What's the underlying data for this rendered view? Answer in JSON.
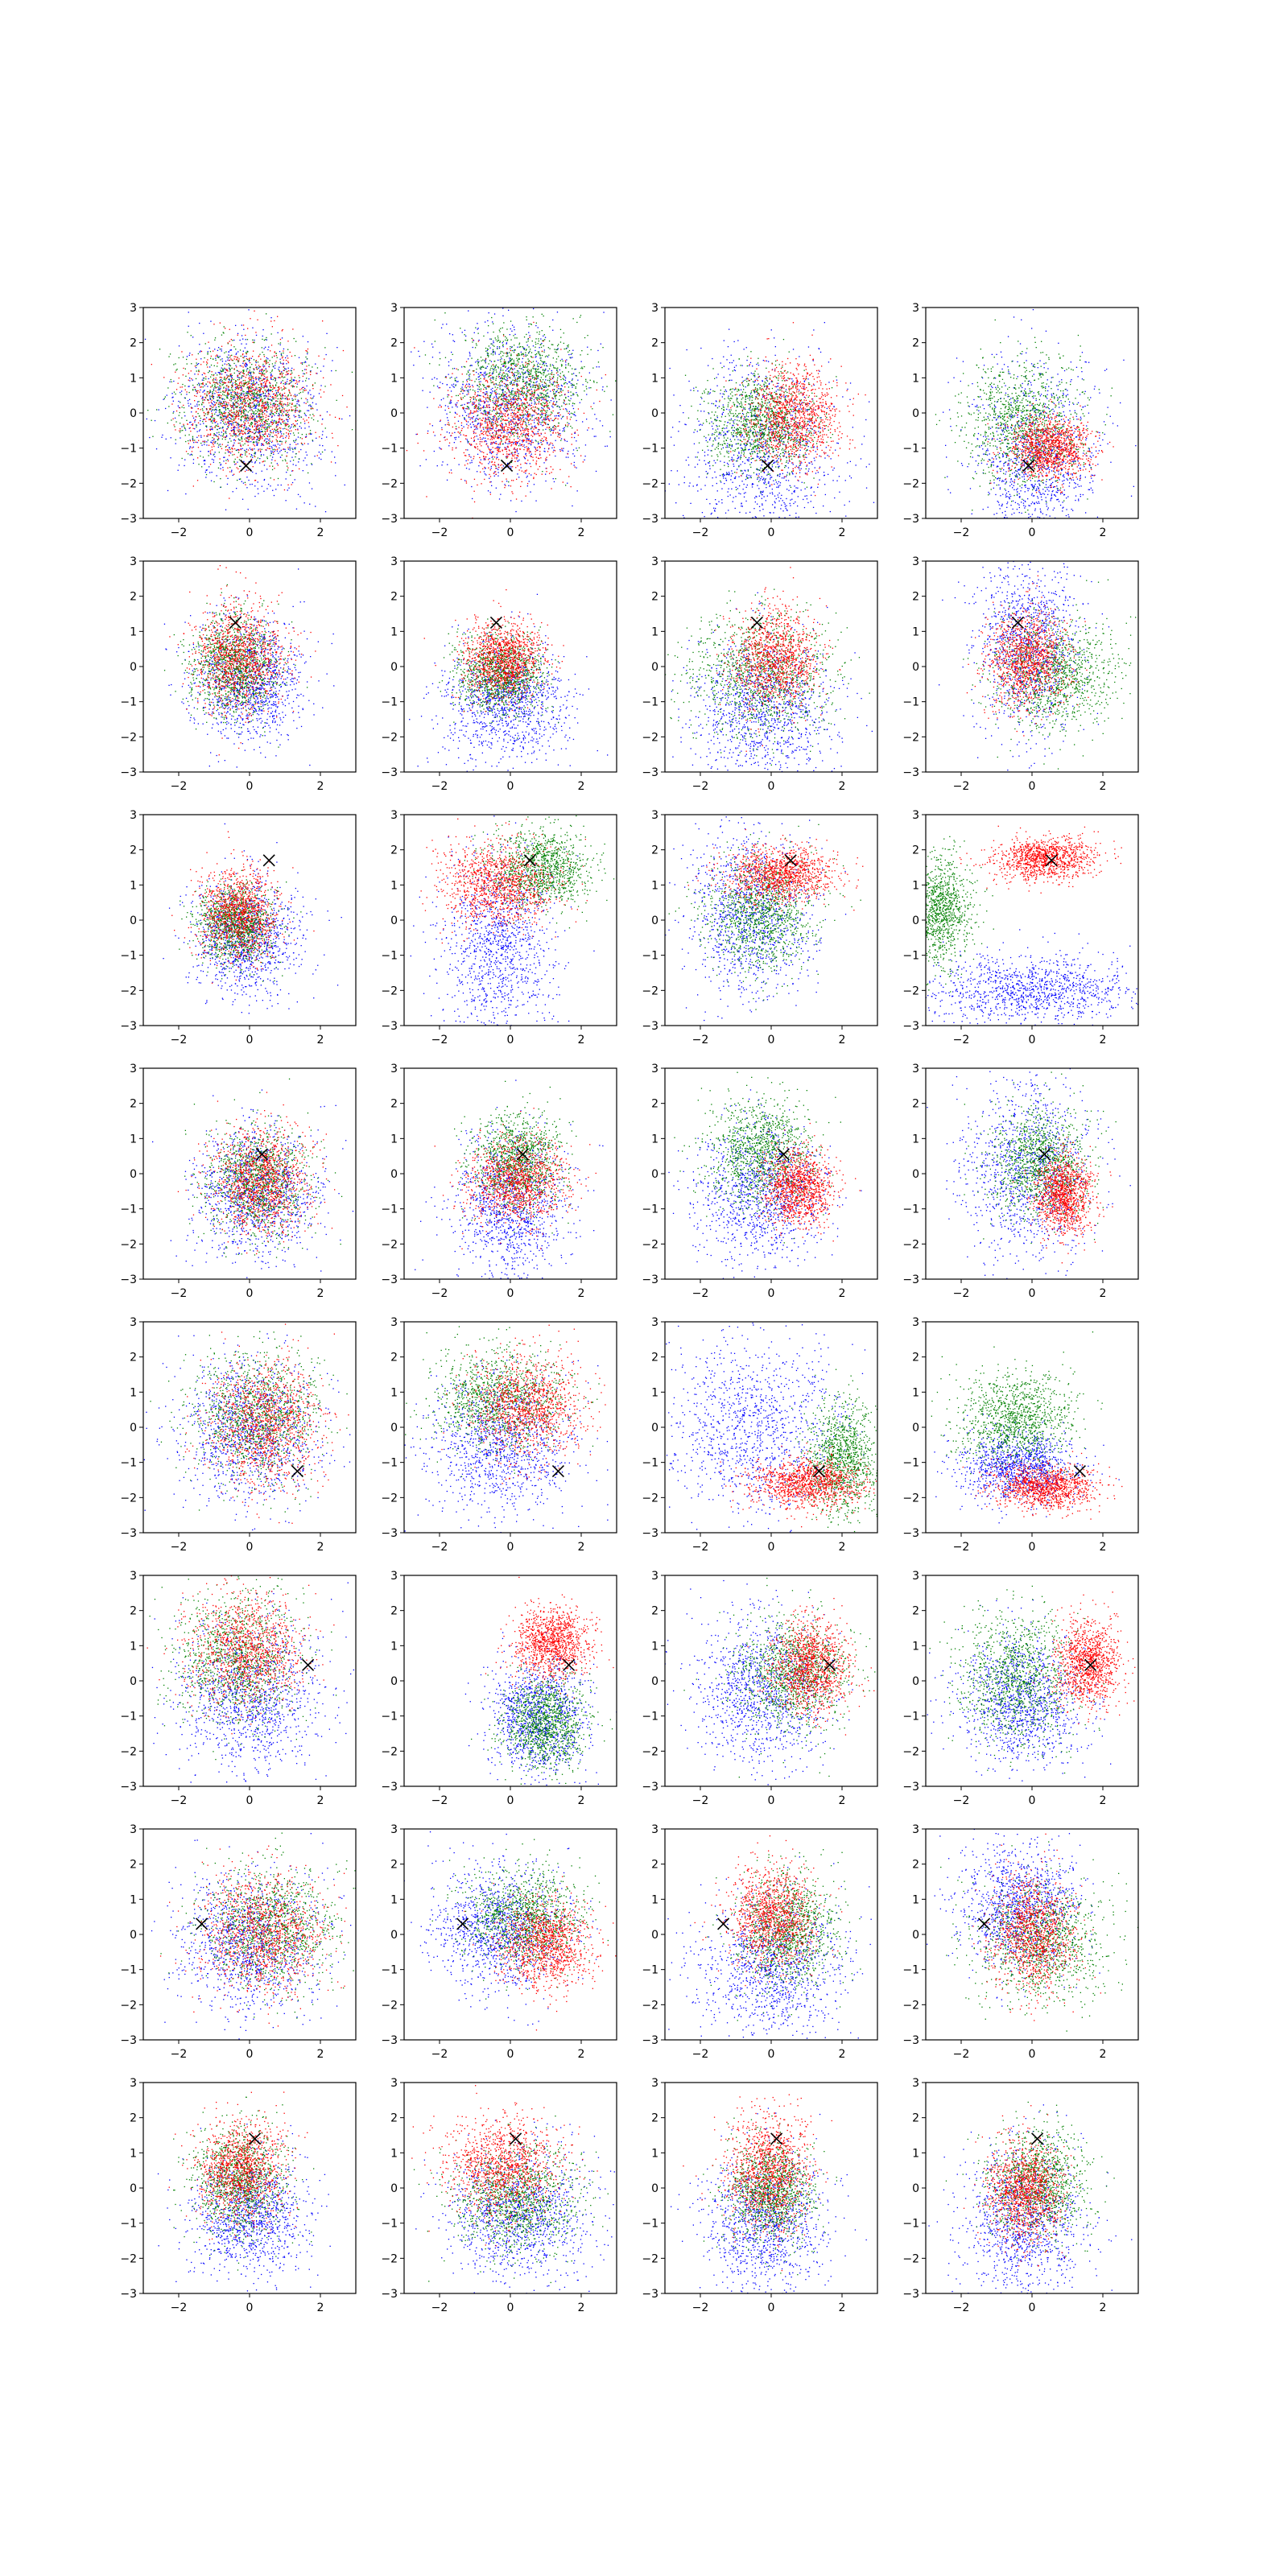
{
  "figure": {
    "rows": 8,
    "cols": 4,
    "colors": {
      "blue": "#0000ff",
      "green": "#008000",
      "red": "#ff0000",
      "marker": "#000000"
    },
    "marker_symbol": "×"
  },
  "chart_data": {
    "type": "scatter",
    "xlim": [
      -3,
      3
    ],
    "ylim": [
      -3,
      3
    ],
    "xticks": [
      -2,
      0,
      2
    ],
    "yticks": [
      -3,
      -2,
      -1,
      0,
      1,
      2,
      3
    ],
    "xtick_labels": [
      "−2",
      "0",
      "2"
    ],
    "ytick_labels": [
      "−3",
      "−2",
      "−1",
      "0",
      "1",
      "2",
      "3"
    ],
    "grid": false,
    "legend": "none",
    "series_colors": [
      "blue",
      "green",
      "red"
    ],
    "points_per_series": 1100,
    "markers_by_row": [
      [
        -0.1,
        -1.5
      ],
      [
        -0.4,
        1.25
      ],
      [
        0.55,
        1.7
      ],
      [
        0.35,
        0.55
      ],
      [
        1.35,
        -1.25
      ],
      [
        1.65,
        0.45
      ],
      [
        -1.35,
        0.3
      ],
      [
        0.15,
        1.4
      ]
    ],
    "panels": [
      {
        "row": 0,
        "col": 0,
        "series": [
          {
            "color": "blue",
            "cx": 0,
            "cy": 0,
            "sx": 1.0,
            "sy": 1.1
          },
          {
            "color": "green",
            "cx": -0.1,
            "cy": 0.3,
            "sx": 0.9,
            "sy": 0.85
          },
          {
            "color": "red",
            "cx": 0,
            "cy": 0.2,
            "sx": 0.9,
            "sy": 0.85
          }
        ]
      },
      {
        "row": 0,
        "col": 1,
        "series": [
          {
            "color": "blue",
            "cx": 0,
            "cy": 0.2,
            "sx": 1.1,
            "sy": 1.1
          },
          {
            "color": "green",
            "cx": 0.3,
            "cy": 0.9,
            "sx": 0.9,
            "sy": 0.8
          },
          {
            "color": "red",
            "cx": -0.1,
            "cy": -0.3,
            "sx": 0.85,
            "sy": 0.8
          }
        ]
      },
      {
        "row": 0,
        "col": 2,
        "series": [
          {
            "color": "blue",
            "cx": -0.3,
            "cy": -1.2,
            "sx": 1.1,
            "sy": 1.4
          },
          {
            "color": "green",
            "cx": -0.3,
            "cy": -0.3,
            "sx": 0.75,
            "sy": 0.7
          },
          {
            "color": "red",
            "cx": 0.6,
            "cy": -0.1,
            "sx": 0.65,
            "sy": 0.7
          }
        ]
      },
      {
        "row": 0,
        "col": 3,
        "series": [
          {
            "color": "blue",
            "cx": 0.1,
            "cy": -1.3,
            "sx": 0.9,
            "sy": 1.4
          },
          {
            "color": "green",
            "cx": -0.2,
            "cy": -0.3,
            "sx": 0.8,
            "sy": 0.9
          },
          {
            "color": "red",
            "cx": 0.5,
            "cy": -1.0,
            "sx": 0.6,
            "sy": 0.45
          }
        ]
      },
      {
        "row": 1,
        "col": 0,
        "series": [
          {
            "color": "blue",
            "cx": 0,
            "cy": -0.4,
            "sx": 0.8,
            "sy": 0.85
          },
          {
            "color": "green",
            "cx": -0.4,
            "cy": 0,
            "sx": 0.6,
            "sy": 0.7
          },
          {
            "color": "red",
            "cx": -0.3,
            "cy": 0.3,
            "sx": 0.65,
            "sy": 0.8
          }
        ]
      },
      {
        "row": 1,
        "col": 1,
        "series": [
          {
            "color": "blue",
            "cx": -0.1,
            "cy": -1.0,
            "sx": 0.9,
            "sy": 0.8
          },
          {
            "color": "green",
            "cx": -0.3,
            "cy": -0.2,
            "sx": 0.6,
            "sy": 0.55
          },
          {
            "color": "red",
            "cx": -0.2,
            "cy": 0.2,
            "sx": 0.55,
            "sy": 0.55
          }
        ]
      },
      {
        "row": 1,
        "col": 2,
        "series": [
          {
            "color": "blue",
            "cx": -0.2,
            "cy": -1.2,
            "sx": 1.0,
            "sy": 1.0
          },
          {
            "color": "green",
            "cx": -0.3,
            "cy": -0.2,
            "sx": 1.0,
            "sy": 0.9
          },
          {
            "color": "red",
            "cx": 0.1,
            "cy": 0.2,
            "sx": 0.6,
            "sy": 0.7
          }
        ]
      },
      {
        "row": 1,
        "col": 3,
        "series": [
          {
            "color": "blue",
            "cx": -0.1,
            "cy": 0.6,
            "sx": 0.7,
            "sy": 1.3
          },
          {
            "color": "green",
            "cx": 0.6,
            "cy": -0.2,
            "sx": 0.9,
            "sy": 0.8
          },
          {
            "color": "red",
            "cx": -0.1,
            "cy": 0.2,
            "sx": 0.55,
            "sy": 0.7
          }
        ]
      },
      {
        "row": 2,
        "col": 0,
        "series": [
          {
            "color": "blue",
            "cx": -0.1,
            "cy": -0.5,
            "sx": 0.75,
            "sy": 0.8
          },
          {
            "color": "green",
            "cx": -0.4,
            "cy": -0.1,
            "sx": 0.55,
            "sy": 0.55
          },
          {
            "color": "red",
            "cx": -0.3,
            "cy": 0.2,
            "sx": 0.55,
            "sy": 0.65
          }
        ]
      },
      {
        "row": 2,
        "col": 1,
        "series": [
          {
            "color": "blue",
            "cx": -0.3,
            "cy": -0.8,
            "sx": 0.75,
            "sy": 1.3
          },
          {
            "color": "green",
            "cx": 0.9,
            "cy": 1.5,
            "sx": 0.7,
            "sy": 0.55
          },
          {
            "color": "red",
            "cx": -0.3,
            "cy": 1.0,
            "sx": 0.8,
            "sy": 0.6
          }
        ]
      },
      {
        "row": 2,
        "col": 2,
        "series": [
          {
            "color": "blue",
            "cx": -0.6,
            "cy": 0.2,
            "sx": 0.9,
            "sy": 1.2
          },
          {
            "color": "green",
            "cx": -0.3,
            "cy": 0.2,
            "sx": 0.8,
            "sy": 0.8
          },
          {
            "color": "red",
            "cx": 0.3,
            "cy": 1.3,
            "sx": 0.75,
            "sy": 0.4
          }
        ]
      },
      {
        "row": 2,
        "col": 3,
        "series": [
          {
            "color": "blue",
            "cx": 0,
            "cy": -2.0,
            "sx": 1.4,
            "sy": 0.5
          },
          {
            "color": "green",
            "cx": -2.6,
            "cy": 0.3,
            "sx": 0.45,
            "sy": 0.8
          },
          {
            "color": "red",
            "cx": 0.4,
            "cy": 1.75,
            "sx": 0.7,
            "sy": 0.3
          }
        ]
      },
      {
        "row": 3,
        "col": 0,
        "series": [
          {
            "color": "blue",
            "cx": 0.2,
            "cy": -0.5,
            "sx": 0.9,
            "sy": 0.9
          },
          {
            "color": "green",
            "cx": 0.2,
            "cy": -0.2,
            "sx": 0.7,
            "sy": 0.75
          },
          {
            "color": "red",
            "cx": 0.3,
            "cy": -0.2,
            "sx": 0.7,
            "sy": 0.75
          }
        ]
      },
      {
        "row": 3,
        "col": 1,
        "series": [
          {
            "color": "blue",
            "cx": 0,
            "cy": -0.9,
            "sx": 0.8,
            "sy": 1.0
          },
          {
            "color": "green",
            "cx": 0.2,
            "cy": 0.4,
            "sx": 0.6,
            "sy": 0.65
          },
          {
            "color": "red",
            "cx": 0.2,
            "cy": -0.2,
            "sx": 0.7,
            "sy": 0.6
          }
        ]
      },
      {
        "row": 3,
        "col": 2,
        "series": [
          {
            "color": "blue",
            "cx": -0.3,
            "cy": -0.6,
            "sx": 0.9,
            "sy": 1.0
          },
          {
            "color": "green",
            "cx": -0.3,
            "cy": 0.6,
            "sx": 0.75,
            "sy": 0.75
          },
          {
            "color": "red",
            "cx": 0.8,
            "cy": -0.4,
            "sx": 0.5,
            "sy": 0.55
          }
        ]
      },
      {
        "row": 3,
        "col": 3,
        "series": [
          {
            "color": "blue",
            "cx": -0.1,
            "cy": 0.1,
            "sx": 0.9,
            "sy": 1.3
          },
          {
            "color": "green",
            "cx": 0.2,
            "cy": 0.3,
            "sx": 0.7,
            "sy": 0.75
          },
          {
            "color": "red",
            "cx": 0.9,
            "cy": -0.6,
            "sx": 0.4,
            "sy": 0.55
          }
        ]
      },
      {
        "row": 4,
        "col": 0,
        "series": [
          {
            "color": "blue",
            "cx": 0,
            "cy": -0.2,
            "sx": 1.0,
            "sy": 1.0
          },
          {
            "color": "green",
            "cx": 0.2,
            "cy": 0.3,
            "sx": 0.9,
            "sy": 0.85
          },
          {
            "color": "red",
            "cx": 0.4,
            "cy": 0.1,
            "sx": 0.8,
            "sy": 0.9
          }
        ]
      },
      {
        "row": 4,
        "col": 1,
        "series": [
          {
            "color": "blue",
            "cx": -0.3,
            "cy": -0.6,
            "sx": 1.0,
            "sy": 1.0
          },
          {
            "color": "green",
            "cx": -0.3,
            "cy": 0.8,
            "sx": 0.9,
            "sy": 0.7
          },
          {
            "color": "red",
            "cx": 0.5,
            "cy": 0.6,
            "sx": 0.8,
            "sy": 0.7
          }
        ]
      },
      {
        "row": 4,
        "col": 2,
        "series": [
          {
            "color": "blue",
            "cx": -0.5,
            "cy": 0,
            "sx": 1.2,
            "sy": 1.3
          },
          {
            "color": "green",
            "cx": 2.0,
            "cy": -0.9,
            "sx": 0.5,
            "sy": 0.8
          },
          {
            "color": "red",
            "cx": 1.0,
            "cy": -1.6,
            "sx": 0.8,
            "sy": 0.35
          }
        ]
      },
      {
        "row": 4,
        "col": 3,
        "series": [
          {
            "color": "blue",
            "cx": -0.4,
            "cy": -1.1,
            "sx": 0.8,
            "sy": 0.5
          },
          {
            "color": "green",
            "cx": -0.4,
            "cy": 0.2,
            "sx": 0.8,
            "sy": 0.65
          },
          {
            "color": "red",
            "cx": 0.4,
            "cy": -1.7,
            "sx": 0.7,
            "sy": 0.3
          }
        ]
      },
      {
        "row": 5,
        "col": 0,
        "series": [
          {
            "color": "blue",
            "cx": 0,
            "cy": -0.5,
            "sx": 1.0,
            "sy": 1.1
          },
          {
            "color": "green",
            "cx": -0.3,
            "cy": 0.6,
            "sx": 0.85,
            "sy": 0.9
          },
          {
            "color": "red",
            "cx": -0.1,
            "cy": 0.9,
            "sx": 0.8,
            "sy": 0.8
          }
        ]
      },
      {
        "row": 5,
        "col": 1,
        "series": [
          {
            "color": "blue",
            "cx": 0.8,
            "cy": -1.0,
            "sx": 0.7,
            "sy": 0.8
          },
          {
            "color": "green",
            "cx": 1.0,
            "cy": -1.2,
            "sx": 0.6,
            "sy": 0.65
          },
          {
            "color": "red",
            "cx": 1.2,
            "cy": 1.1,
            "sx": 0.55,
            "sy": 0.5
          }
        ]
      },
      {
        "row": 5,
        "col": 2,
        "series": [
          {
            "color": "blue",
            "cx": -0.3,
            "cy": -0.3,
            "sx": 1.0,
            "sy": 1.1
          },
          {
            "color": "green",
            "cx": 0.6,
            "cy": 0.2,
            "sx": 0.8,
            "sy": 0.8
          },
          {
            "color": "red",
            "cx": 1.1,
            "cy": 0.4,
            "sx": 0.55,
            "sy": 0.65
          }
        ]
      },
      {
        "row": 5,
        "col": 3,
        "series": [
          {
            "color": "blue",
            "cx": -0.3,
            "cy": -0.6,
            "sx": 0.85,
            "sy": 0.9
          },
          {
            "color": "green",
            "cx": -0.4,
            "cy": 0.1,
            "sx": 0.8,
            "sy": 0.9
          },
          {
            "color": "red",
            "cx": 1.6,
            "cy": 0.5,
            "sx": 0.45,
            "sy": 0.6
          }
        ]
      },
      {
        "row": 6,
        "col": 0,
        "series": [
          {
            "color": "blue",
            "cx": 0,
            "cy": -0.2,
            "sx": 1.0,
            "sy": 1.0
          },
          {
            "color": "green",
            "cx": 0.6,
            "cy": 0.2,
            "sx": 0.9,
            "sy": 0.85
          },
          {
            "color": "red",
            "cx": 0.4,
            "cy": 0,
            "sx": 0.85,
            "sy": 0.85
          }
        ]
      },
      {
        "row": 6,
        "col": 1,
        "series": [
          {
            "color": "blue",
            "cx": -0.3,
            "cy": 0.2,
            "sx": 0.9,
            "sy": 0.9
          },
          {
            "color": "green",
            "cx": 0.4,
            "cy": 0.5,
            "sx": 0.85,
            "sy": 0.7
          },
          {
            "color": "red",
            "cx": 1.0,
            "cy": -0.3,
            "sx": 0.65,
            "sy": 0.6
          }
        ]
      },
      {
        "row": 6,
        "col": 2,
        "series": [
          {
            "color": "blue",
            "cx": 0,
            "cy": -1.0,
            "sx": 1.0,
            "sy": 1.0
          },
          {
            "color": "green",
            "cx": 0.5,
            "cy": 0.1,
            "sx": 0.7,
            "sy": 0.8
          },
          {
            "color": "red",
            "cx": 0,
            "cy": 0.5,
            "sx": 0.6,
            "sy": 0.7
          }
        ]
      },
      {
        "row": 6,
        "col": 3,
        "series": [
          {
            "color": "blue",
            "cx": -0.3,
            "cy": 0.8,
            "sx": 0.85,
            "sy": 0.9
          },
          {
            "color": "green",
            "cx": 0.3,
            "cy": -0.2,
            "sx": 0.9,
            "sy": 0.8
          },
          {
            "color": "red",
            "cx": 0,
            "cy": 0,
            "sx": 0.55,
            "sy": 0.8
          }
        ]
      },
      {
        "row": 7,
        "col": 0,
        "series": [
          {
            "color": "blue",
            "cx": 0,
            "cy": -0.8,
            "sx": 0.8,
            "sy": 0.85
          },
          {
            "color": "green",
            "cx": -0.3,
            "cy": 0.2,
            "sx": 0.65,
            "sy": 0.75
          },
          {
            "color": "red",
            "cx": -0.2,
            "cy": 0.5,
            "sx": 0.6,
            "sy": 0.7
          }
        ]
      },
      {
        "row": 7,
        "col": 1,
        "series": [
          {
            "color": "blue",
            "cx": 0.3,
            "cy": -0.8,
            "sx": 1.0,
            "sy": 0.9
          },
          {
            "color": "green",
            "cx": 0.2,
            "cy": -0.4,
            "sx": 0.85,
            "sy": 0.75
          },
          {
            "color": "red",
            "cx": -0.2,
            "cy": 0.6,
            "sx": 0.8,
            "sy": 0.7
          }
        ]
      },
      {
        "row": 7,
        "col": 2,
        "series": [
          {
            "color": "blue",
            "cx": -0.2,
            "cy": -1.0,
            "sx": 0.85,
            "sy": 1.0
          },
          {
            "color": "green",
            "cx": 0,
            "cy": -0.1,
            "sx": 0.6,
            "sy": 0.7
          },
          {
            "color": "red",
            "cx": -0.1,
            "cy": 0.5,
            "sx": 0.6,
            "sy": 0.8
          }
        ]
      },
      {
        "row": 7,
        "col": 3,
        "series": [
          {
            "color": "blue",
            "cx": -0.2,
            "cy": -1.0,
            "sx": 0.85,
            "sy": 1.1
          },
          {
            "color": "green",
            "cx": 0.2,
            "cy": 0.2,
            "sx": 0.7,
            "sy": 0.75
          },
          {
            "color": "red",
            "cx": -0.2,
            "cy": -0.1,
            "sx": 0.5,
            "sy": 0.7
          }
        ]
      }
    ]
  }
}
